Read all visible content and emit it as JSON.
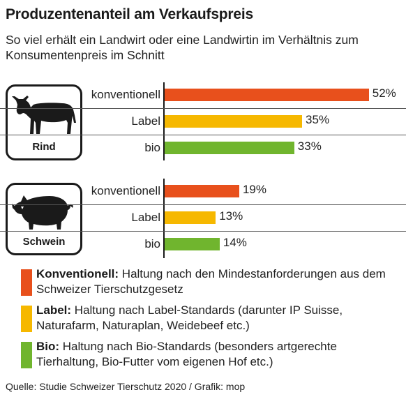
{
  "title": "Produzentenanteil am Verkaufspreis",
  "subtitle": "So viel erhält ein Landwirt oder eine Landwirtin im Verhältnis zum Konsumentenpreis im Schnitt",
  "colors": {
    "konventionell": "#e8501c",
    "label": "#f6b800",
    "bio": "#70b52e"
  },
  "chart_data": [
    {
      "type": "bar",
      "group": "Rind",
      "icon": "cow-icon",
      "categories": [
        "konventionell",
        "Label",
        "bio"
      ],
      "values": [
        52,
        35,
        33
      ],
      "value_labels": [
        "52%",
        "35%",
        "33%"
      ],
      "unit": "%"
    },
    {
      "type": "bar",
      "group": "Schwein",
      "icon": "pig-icon",
      "categories": [
        "konventionell",
        "Label",
        "bio"
      ],
      "values": [
        19,
        13,
        14
      ],
      "value_labels": [
        "19%",
        "13%",
        "14%"
      ],
      "unit": "%"
    }
  ],
  "legend": [
    {
      "key": "konventionell",
      "title": "Konventionell:",
      "text": " Haltung nach den Mindestanforderungen aus dem Schweizer Tierschutzgesetz"
    },
    {
      "key": "label",
      "title": "Label:",
      "text": " Haltung nach Label-Standards (darunter IP Suisse, Naturafarm, Naturaplan, Weidebeef etc.)"
    },
    {
      "key": "bio",
      "title": "Bio:",
      "text": " Haltung nach Bio-Standards (besonders artgerechte Tierhaltung, Bio-Futter vom eigenen Hof etc.)"
    }
  ],
  "source": "Quelle: Studie Schweizer Tierschutz 2020 / Grafik: mop"
}
